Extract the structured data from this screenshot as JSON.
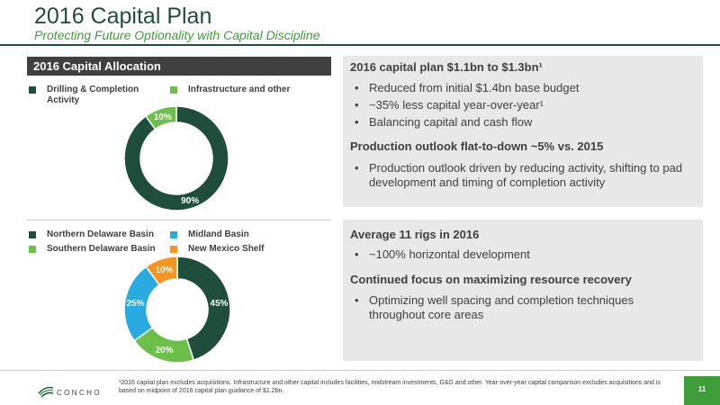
{
  "header": {
    "title": "2016 Capital Plan",
    "subtitle": "Protecting Future Optionality with Capital Discipline"
  },
  "allocation": {
    "header": "2016 Capital Allocation",
    "legend": [
      {
        "label": "Drilling & Completion Activity",
        "color": "#1f4e3d"
      },
      {
        "label": "Infrastructure and other",
        "color": "#6cc04a"
      }
    ]
  },
  "region": {
    "legend": [
      {
        "label": "Northern Delaware Basin",
        "color": "#1f4e3d"
      },
      {
        "label": "Midland Basin",
        "color": "#29abe2"
      },
      {
        "label": "Southern Delaware Basin",
        "color": "#6cc04a"
      },
      {
        "label": "New Mexico Shelf",
        "color": "#f7941d"
      }
    ]
  },
  "chart_data": [
    {
      "type": "pie",
      "categories": [
        "Drilling & Completion Activity",
        "Infrastructure and other"
      ],
      "values": [
        90,
        10
      ],
      "labels": [
        "90%",
        "10%"
      ],
      "colors": [
        "#1f4e3d",
        "#6cc04a"
      ],
      "donut": true
    },
    {
      "type": "pie",
      "categories": [
        "Northern Delaware Basin",
        "Southern Delaware Basin",
        "Midland Basin",
        "New Mexico Shelf"
      ],
      "values": [
        45,
        20,
        25,
        10
      ],
      "labels": [
        "45%",
        "20%",
        "25%",
        "10%"
      ],
      "colors": [
        "#1f4e3d",
        "#6cc04a",
        "#29abe2",
        "#f7941d"
      ],
      "donut": true
    }
  ],
  "panel1": {
    "heading1": "2016 capital plan $1.1bn to $1.3bn¹",
    "bullets1": [
      "Reduced from initial $1.4bn base budget",
      "~35% less capital year-over-year¹",
      "Balancing capital and cash flow"
    ],
    "heading2": "Production outlook flat-to-down ~5% vs. 2015",
    "bullets2": [
      "Production outlook driven by reducing activity, shifting to pad development and timing of completion activity"
    ]
  },
  "panel2": {
    "heading1": "Average 11 rigs in 2016",
    "bullets1": [
      "~100% horizontal development"
    ],
    "heading2": "Continued focus on maximizing resource recovery",
    "bullets2": [
      "Optimizing well spacing and completion techniques throughout core areas"
    ]
  },
  "bullet_char": "•",
  "footer": {
    "footnote": "¹2016 capital plan excludes acquisitions. Infrastructure and other capital includes facilities, midstream investments, G&G and other. Year-over-year capital comparison excludes acquisitions and is based on midpoint of 2016 capital plan guidance of $1.2bn.",
    "logo_text": "CONCHO",
    "page_number": "11"
  }
}
